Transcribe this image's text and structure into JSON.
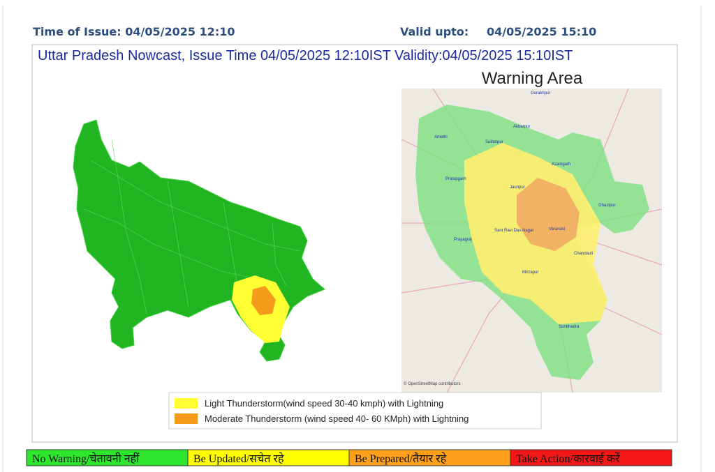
{
  "header": {
    "issue": "Time of Issue: 04/05/2025 12:10",
    "valid_label": "Valid upto:",
    "valid_value": "04/05/2025 15:10"
  },
  "title": "Uttar Pradesh Nowcast, Issue Time 04/05/2025 12:10IST  Validity:04/05/2025 15:10IST",
  "inset": {
    "title": "Warning Area",
    "places": [
      "Gorakhpur",
      "Amethi",
      "Sultanpur",
      "Akbarpur",
      "Azamgarh",
      "Pratapgarh",
      "Jaunpur",
      "Ghazipur",
      "Prayagraj",
      "Sant Ravi Das Nagar",
      "Varanasi",
      "Chandauli",
      "Mirzapur",
      "Sonbhadra"
    ],
    "credit": "© OpenStreetMap contributors"
  },
  "legend": [
    "Light Thunderstorm(wind speed 30-40 kmph) with Lightning",
    "Moderate Thunderstorm (wind speed 40- 60 KMph) with Lightning"
  ],
  "scale": [
    "No Warning/चेतावनी नहीं",
    "Be Updated/सचेत रहे",
    "Be Prepared/तैयार रहे",
    "Take Action/कारवाई करें"
  ]
}
